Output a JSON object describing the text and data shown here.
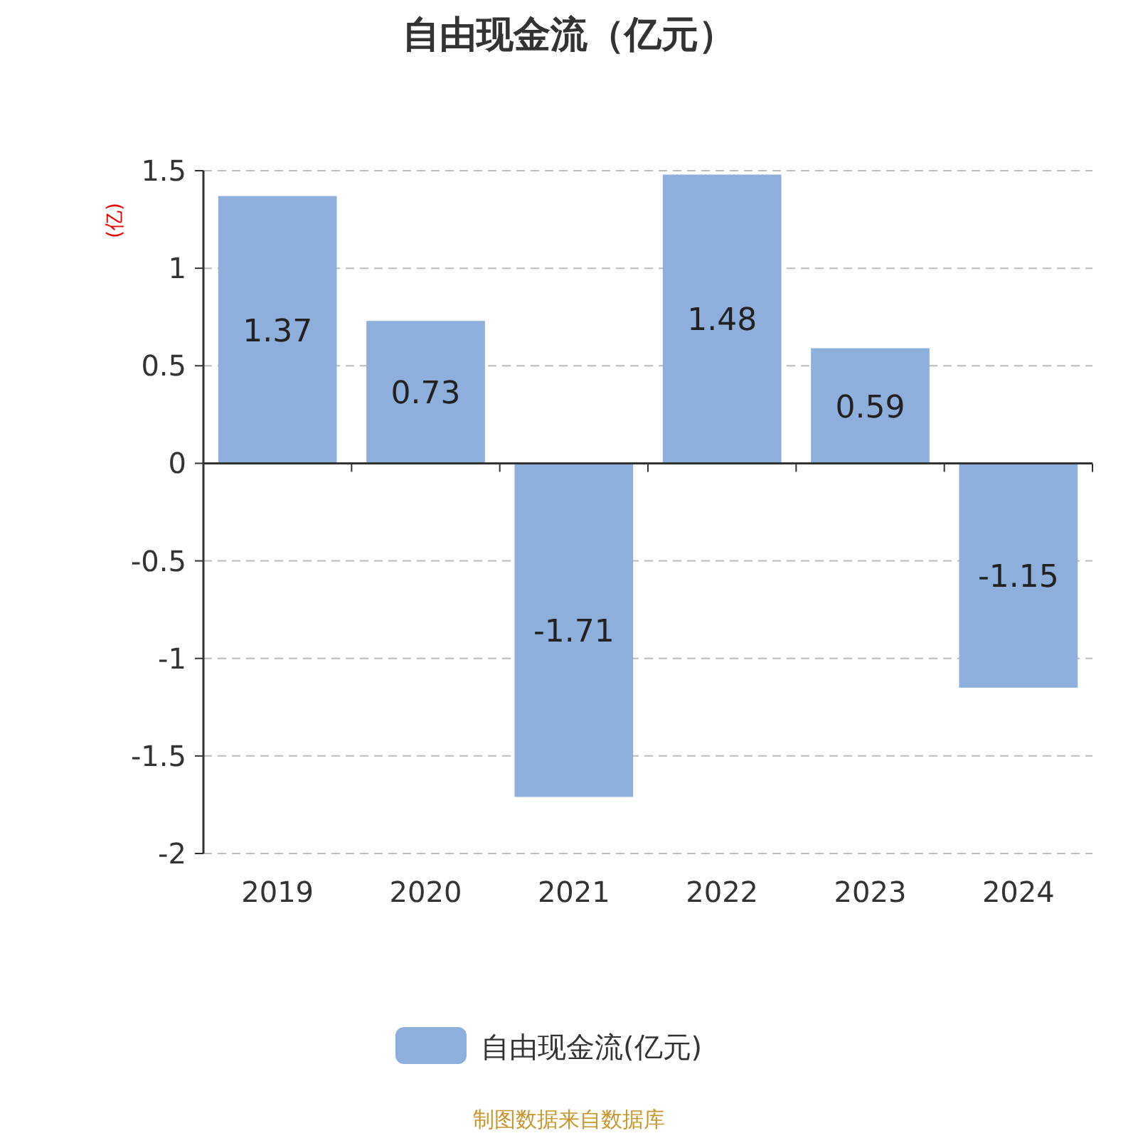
{
  "chart_data": {
    "type": "bar",
    "title": "自由现金流（亿元）",
    "ylabel": "(亿)",
    "categories": [
      "2019",
      "2020",
      "2021",
      "2022",
      "2023",
      "2024"
    ],
    "series": [
      {
        "name": "自由现金流(亿元)",
        "color": "#8eaedb",
        "values": [
          1.37,
          0.73,
          -1.71,
          1.48,
          0.59,
          -1.15
        ]
      }
    ],
    "ylim": [
      -2,
      1.5
    ],
    "yticks": [
      -2,
      -1.5,
      -1,
      -0.5,
      0,
      0.5,
      1,
      1.5
    ],
    "grid": "y",
    "legend": "bottom",
    "data_labels": true,
    "annotations": [
      "制图数据来自数据库"
    ]
  }
}
